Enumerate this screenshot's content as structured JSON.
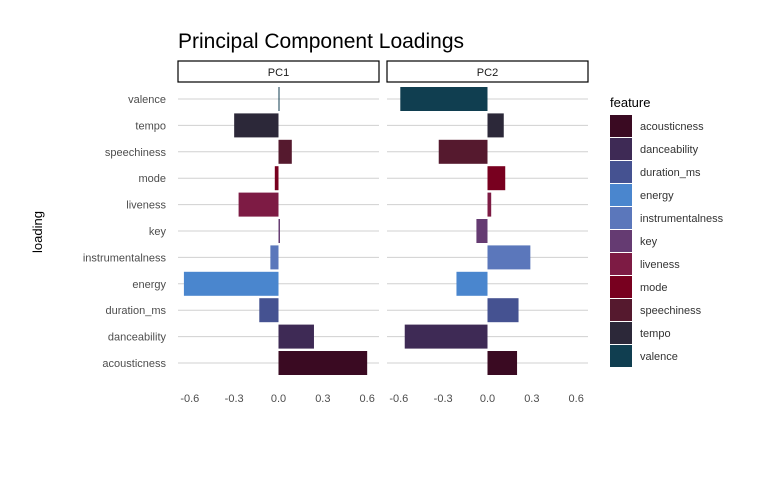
{
  "chart_data": {
    "type": "bar",
    "orientation": "horizontal",
    "title": "Principal Component Loadings",
    "ylabel": "loading",
    "xlim": [
      -0.68,
      0.68
    ],
    "x_ticks": [
      -0.6,
      -0.3,
      0.0,
      0.3,
      0.6
    ],
    "x_tick_labels": [
      "-0.6",
      "-0.3",
      "0.0",
      "0.3",
      "0.6"
    ],
    "grid": true,
    "legend_title": "feature",
    "legend_position": "right",
    "categories": [
      "valence",
      "tempo",
      "speechiness",
      "mode",
      "liveness",
      "key",
      "instrumentalness",
      "energy",
      "duration_ms",
      "danceability",
      "acousticness"
    ],
    "panels": [
      {
        "label": "PC1",
        "values": {
          "valence": 0.005,
          "tempo": -0.3,
          "speechiness": 0.09,
          "mode": -0.025,
          "liveness": -0.27,
          "key": 0.01,
          "instrumentalness": -0.055,
          "energy": -0.64,
          "duration_ms": -0.13,
          "danceability": 0.24,
          "acousticness": 0.6
        }
      },
      {
        "label": "PC2",
        "values": {
          "valence": -0.59,
          "tempo": 0.11,
          "speechiness": -0.33,
          "mode": 0.12,
          "liveness": 0.025,
          "key": -0.075,
          "instrumentalness": 0.29,
          "energy": -0.21,
          "duration_ms": 0.21,
          "danceability": -0.56,
          "acousticness": 0.2
        }
      }
    ],
    "legend": [
      {
        "name": "acousticness",
        "color": "#3a0a22"
      },
      {
        "name": "danceability",
        "color": "#3e2a55"
      },
      {
        "name": "duration_ms",
        "color": "#455291"
      },
      {
        "name": "energy",
        "color": "#4a86ce"
      },
      {
        "name": "instrumentalness",
        "color": "#5b77bb"
      },
      {
        "name": "key",
        "color": "#653b72"
      },
      {
        "name": "liveness",
        "color": "#7d1b44"
      },
      {
        "name": "mode",
        "color": "#78001f"
      },
      {
        "name": "speechiness",
        "color": "#55192e"
      },
      {
        "name": "tempo",
        "color": "#2c2839"
      },
      {
        "name": "valence",
        "color": "#103e50"
      }
    ]
  }
}
